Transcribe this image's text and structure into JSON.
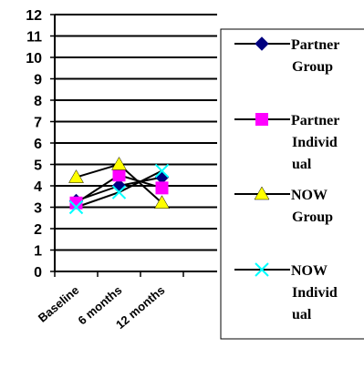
{
  "chart_data": {
    "type": "line",
    "categories": [
      "Baseline",
      "6 months",
      "12 months"
    ],
    "y_ticks": [
      "0",
      "1",
      "2",
      "3",
      "4",
      "5",
      "6",
      "7",
      "8",
      "9",
      "10",
      "11",
      "12"
    ],
    "ylim": [
      0,
      12
    ],
    "grid": true,
    "legend_position": "right",
    "series": [
      {
        "name": "Partner Group",
        "name_lines": [
          "Partner",
          "Group"
        ],
        "values": [
          3.3,
          4.0,
          4.4
        ],
        "color": "#000080",
        "marker": "diamond-icon"
      },
      {
        "name": "Partner Individual",
        "name_lines": [
          "Partner",
          "Individ",
          "ual"
        ],
        "values": [
          3.2,
          4.5,
          3.9
        ],
        "color": "#FF00FF",
        "marker": "square-icon"
      },
      {
        "name": "NOW Group",
        "name_lines": [
          "NOW",
          "Group"
        ],
        "values": [
          4.4,
          5.0,
          3.2
        ],
        "color": "#FFFF00",
        "marker": "triangle-icon"
      },
      {
        "name": "NOW Individual",
        "name_lines": [
          "NOW",
          "Individ",
          "ual"
        ],
        "values": [
          3.0,
          3.7,
          4.7
        ],
        "color": "#00FFFF",
        "marker": "x-icon"
      }
    ]
  }
}
